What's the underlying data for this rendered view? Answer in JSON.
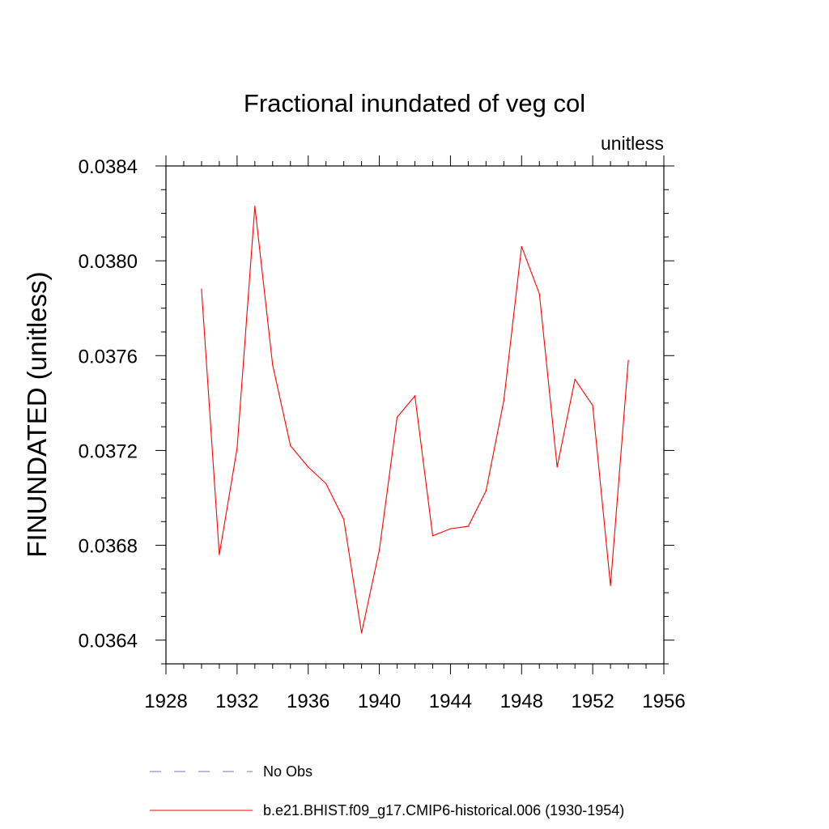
{
  "chart_data": {
    "type": "line",
    "title": "Fractional inundated of veg col",
    "units": "unitless",
    "xlabel": "",
    "ylabel": "FINUNDATED  (unitless)",
    "xlim": [
      1928,
      1956
    ],
    "ylim": [
      0.0363,
      0.0384
    ],
    "x_ticks": [
      1928,
      1932,
      1936,
      1940,
      1944,
      1948,
      1952,
      1956
    ],
    "y_ticks": [
      0.0364,
      0.0368,
      0.0372,
      0.0376,
      0.038,
      0.0384
    ],
    "y_tick_labels": [
      "0.0364",
      "0.0368",
      "0.0372",
      "0.0376",
      "0.0380",
      "0.0384"
    ],
    "x": [
      1930,
      1931,
      1932,
      1933,
      1934,
      1935,
      1936,
      1937,
      1938,
      1939,
      1940,
      1941,
      1942,
      1943,
      1944,
      1945,
      1946,
      1947,
      1948,
      1949,
      1950,
      1951,
      1952,
      1953,
      1954
    ],
    "series": [
      {
        "name": "b.e21.BHIST.f09_g17.CMIP6-historical.006 (1930-1954)",
        "color": "#ff0000",
        "style": "solid",
        "values": [
          0.03788,
          0.03676,
          0.03721,
          0.03823,
          0.03756,
          0.03722,
          0.03713,
          0.03706,
          0.03691,
          0.03643,
          0.03678,
          0.03734,
          0.03743,
          0.03684,
          0.03687,
          0.03688,
          0.03703,
          0.03741,
          0.03806,
          0.03786,
          0.03713,
          0.0375,
          0.03739,
          0.03663,
          0.03758
        ]
      }
    ],
    "legend": [
      {
        "label": "No Obs",
        "color": "#7070c0",
        "style": "dashed"
      },
      {
        "label": "b.e21.BHIST.f09_g17.CMIP6-historical.006 (1930-1954)",
        "color": "#ff0000",
        "style": "solid"
      }
    ],
    "legend_position": "bottom"
  }
}
